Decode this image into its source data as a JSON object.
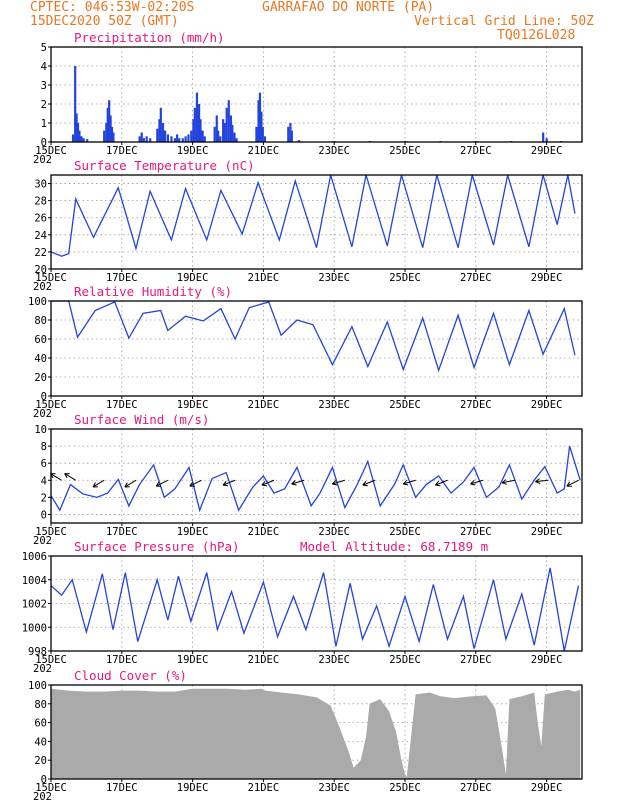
{
  "header": {
    "line1_left": "CPTEC:  046:53W-02:20S",
    "line1_right": "GARRAFAO DO NORTE (PA)",
    "line2_left": "15DEC2020 50Z (GMT)",
    "line2_right": "Vertical Grid Line: 50Z",
    "line3_right": "TQ0126L028"
  },
  "colors": {
    "header": "#e87722",
    "panel_title": "#e8177d",
    "series": "#2244dd",
    "cloud": "#aaaaaa"
  },
  "x_axis": {
    "tick_labels": [
      "15DEC",
      "17DEC",
      "19DEC",
      "21DEC",
      "23DEC",
      "25DEC",
      "27DEC",
      "29DEC"
    ],
    "year_fragment": "202"
  },
  "chart_data": [
    {
      "type": "bar",
      "title": "Precipitation (mm/h)",
      "ylim": [
        0,
        5
      ],
      "yticks": [
        0,
        1,
        2,
        3,
        4,
        5
      ],
      "x_unit": "days since 15DEC",
      "points": [
        [
          0.62,
          0.4
        ],
        [
          0.68,
          4.0
        ],
        [
          0.72,
          1.5
        ],
        [
          0.76,
          1.0
        ],
        [
          0.8,
          0.6
        ],
        [
          0.86,
          0.3
        ],
        [
          0.92,
          0.2
        ],
        [
          1.02,
          0.15
        ],
        [
          1.5,
          0.6
        ],
        [
          1.56,
          1.0
        ],
        [
          1.6,
          1.8
        ],
        [
          1.64,
          2.2
        ],
        [
          1.68,
          1.4
        ],
        [
          1.72,
          0.8
        ],
        [
          1.76,
          0.5
        ],
        [
          2.5,
          0.3
        ],
        [
          2.56,
          0.5
        ],
        [
          2.62,
          0.2
        ],
        [
          2.7,
          0.3
        ],
        [
          2.8,
          0.2
        ],
        [
          3.0,
          0.7
        ],
        [
          3.06,
          1.2
        ],
        [
          3.1,
          1.8
        ],
        [
          3.16,
          1.0
        ],
        [
          3.22,
          0.6
        ],
        [
          3.3,
          0.4
        ],
        [
          3.4,
          0.3
        ],
        [
          3.5,
          0.2
        ],
        [
          3.56,
          0.4
        ],
        [
          3.62,
          0.2
        ],
        [
          3.72,
          0.2
        ],
        [
          3.8,
          0.3
        ],
        [
          3.88,
          0.4
        ],
        [
          3.96,
          0.6
        ],
        [
          4.02,
          1.2
        ],
        [
          4.06,
          1.8
        ],
        [
          4.12,
          2.6
        ],
        [
          4.18,
          2.0
        ],
        [
          4.22,
          1.2
        ],
        [
          4.28,
          0.6
        ],
        [
          4.34,
          0.3
        ],
        [
          4.62,
          0.8
        ],
        [
          4.68,
          1.4
        ],
        [
          4.72,
          0.6
        ],
        [
          4.78,
          0.3
        ],
        [
          4.86,
          1.2
        ],
        [
          4.9,
          1.0
        ],
        [
          4.96,
          1.8
        ],
        [
          5.02,
          2.2
        ],
        [
          5.08,
          1.4
        ],
        [
          5.12,
          0.9
        ],
        [
          5.18,
          0.5
        ],
        [
          5.24,
          0.2
        ],
        [
          5.8,
          0.8
        ],
        [
          5.86,
          2.2
        ],
        [
          5.9,
          2.6
        ],
        [
          5.94,
          1.6
        ],
        [
          5.98,
          0.8
        ],
        [
          6.04,
          0.3
        ],
        [
          6.7,
          0.8
        ],
        [
          6.76,
          1.0
        ],
        [
          6.8,
          0.6
        ],
        [
          7.0,
          0.1
        ],
        [
          8.0,
          0.05
        ],
        [
          9.0,
          0.05
        ],
        [
          10.0,
          0.05
        ],
        [
          11.0,
          0.05
        ],
        [
          12.0,
          0.05
        ],
        [
          13.0,
          0.05
        ],
        [
          13.9,
          0.5
        ],
        [
          14.0,
          0.2
        ],
        [
          14.4,
          0.05
        ]
      ]
    },
    {
      "type": "line",
      "title": "Surface Temperature (nC)",
      "ylim": [
        20,
        31
      ],
      "yticks": [
        20,
        22,
        24,
        26,
        28,
        30
      ],
      "x_unit": "days since 15DEC",
      "points": [
        [
          0,
          22.0
        ],
        [
          0.3,
          21.5
        ],
        [
          0.5,
          21.8
        ],
        [
          0.7,
          28.2
        ],
        [
          1.2,
          23.7
        ],
        [
          1.9,
          29.5
        ],
        [
          2.4,
          22.4
        ],
        [
          2.8,
          29.1
        ],
        [
          3.4,
          23.4
        ],
        [
          3.8,
          29.4
        ],
        [
          4.4,
          23.4
        ],
        [
          4.8,
          29.2
        ],
        [
          5.4,
          24.1
        ],
        [
          5.85,
          30.1
        ],
        [
          6.45,
          23.4
        ],
        [
          6.9,
          30.3
        ],
        [
          7.5,
          22.5
        ],
        [
          7.9,
          31.2
        ],
        [
          8.5,
          22.6
        ],
        [
          8.9,
          31.2
        ],
        [
          9.5,
          22.7
        ],
        [
          9.9,
          31.2
        ],
        [
          10.5,
          22.5
        ],
        [
          10.9,
          31.2
        ],
        [
          11.5,
          22.5
        ],
        [
          11.9,
          31.0
        ],
        [
          12.5,
          22.8
        ],
        [
          12.9,
          31.0
        ],
        [
          13.5,
          22.6
        ],
        [
          13.9,
          31.2
        ],
        [
          14.3,
          25.2
        ],
        [
          14.6,
          31.0
        ],
        [
          14.8,
          26.5
        ]
      ]
    },
    {
      "type": "line",
      "title": "Relative Humidity (%)",
      "ylim": [
        0,
        100
      ],
      "yticks": [
        0,
        20,
        40,
        60,
        80,
        100
      ],
      "x_unit": "days since 15DEC",
      "points": [
        [
          0,
          100
        ],
        [
          0.5,
          100
        ],
        [
          0.75,
          62
        ],
        [
          1.25,
          90
        ],
        [
          1.8,
          99
        ],
        [
          2.2,
          61
        ],
        [
          2.6,
          87
        ],
        [
          3.1,
          90
        ],
        [
          3.3,
          69
        ],
        [
          3.8,
          84
        ],
        [
          4.3,
          79
        ],
        [
          4.8,
          92
        ],
        [
          5.2,
          60
        ],
        [
          5.6,
          93
        ],
        [
          6.15,
          99
        ],
        [
          6.5,
          64
        ],
        [
          6.95,
          80
        ],
        [
          7.4,
          75
        ],
        [
          7.95,
          33
        ],
        [
          8.5,
          73
        ],
        [
          8.95,
          31
        ],
        [
          9.5,
          78
        ],
        [
          9.95,
          28
        ],
        [
          10.5,
          82
        ],
        [
          10.95,
          27
        ],
        [
          11.5,
          85
        ],
        [
          11.95,
          30
        ],
        [
          12.5,
          87
        ],
        [
          12.95,
          33
        ],
        [
          13.5,
          90
        ],
        [
          13.9,
          44
        ],
        [
          14.5,
          92
        ],
        [
          14.8,
          43
        ]
      ]
    },
    {
      "type": "line",
      "title": "Surface Wind (m/s)",
      "ylim": [
        -1,
        10
      ],
      "yticks": [
        0,
        2,
        4,
        6,
        8,
        10
      ],
      "x_unit": "days since 15DEC",
      "points": [
        [
          0,
          2.2
        ],
        [
          0.25,
          0.5
        ],
        [
          0.55,
          3.5
        ],
        [
          0.9,
          2.4
        ],
        [
          1.3,
          2.0
        ],
        [
          1.6,
          2.5
        ],
        [
          1.9,
          4.1
        ],
        [
          2.2,
          1.0
        ],
        [
          2.5,
          3.5
        ],
        [
          2.9,
          5.8
        ],
        [
          3.2,
          2.0
        ],
        [
          3.5,
          3.0
        ],
        [
          3.9,
          5.5
        ],
        [
          4.2,
          0.5
        ],
        [
          4.55,
          4.2
        ],
        [
          4.95,
          4.9
        ],
        [
          5.3,
          0.5
        ],
        [
          5.7,
          3.2
        ],
        [
          6.0,
          4.5
        ],
        [
          6.3,
          2.5
        ],
        [
          6.6,
          3.0
        ],
        [
          6.95,
          5.5
        ],
        [
          7.35,
          1.0
        ],
        [
          7.6,
          2.5
        ],
        [
          7.95,
          5.5
        ],
        [
          8.3,
          0.8
        ],
        [
          8.65,
          3.5
        ],
        [
          8.95,
          6.2
        ],
        [
          9.3,
          1.0
        ],
        [
          9.7,
          3.5
        ],
        [
          9.95,
          5.8
        ],
        [
          10.3,
          2.0
        ],
        [
          10.6,
          3.5
        ],
        [
          10.95,
          4.5
        ],
        [
          11.3,
          2.5
        ],
        [
          11.65,
          3.8
        ],
        [
          11.95,
          5.5
        ],
        [
          12.3,
          2.0
        ],
        [
          12.65,
          3.2
        ],
        [
          12.95,
          5.8
        ],
        [
          13.3,
          1.8
        ],
        [
          13.65,
          4.0
        ],
        [
          13.95,
          5.6
        ],
        [
          14.3,
          2.5
        ],
        [
          14.5,
          3.0
        ],
        [
          14.65,
          8.0
        ],
        [
          14.95,
          4.0
        ]
      ]
    },
    {
      "type": "line",
      "title": "Surface Pressure (hPa)",
      "annotation": "Model Altitude: 68.7189 m",
      "ylim": [
        998,
        1006
      ],
      "yticks": [
        998,
        1000,
        1002,
        1004,
        1006
      ],
      "x_unit": "days since 15DEC",
      "points": [
        [
          0,
          1003.5
        ],
        [
          0.3,
          1002.7
        ],
        [
          0.6,
          1004.0
        ],
        [
          1.0,
          999.6
        ],
        [
          1.45,
          1004.5
        ],
        [
          1.75,
          999.8
        ],
        [
          2.1,
          1004.6
        ],
        [
          2.45,
          998.8
        ],
        [
          3.0,
          1004.0
        ],
        [
          3.3,
          1000.6
        ],
        [
          3.6,
          1004.3
        ],
        [
          3.95,
          1000.5
        ],
        [
          4.4,
          1004.6
        ],
        [
          4.7,
          999.8
        ],
        [
          5.1,
          1003.0
        ],
        [
          5.45,
          999.5
        ],
        [
          6.0,
          1003.8
        ],
        [
          6.4,
          999.2
        ],
        [
          6.85,
          1002.6
        ],
        [
          7.2,
          999.8
        ],
        [
          7.7,
          1004.6
        ],
        [
          8.05,
          998.4
        ],
        [
          8.45,
          1003.7
        ],
        [
          8.8,
          999.0
        ],
        [
          9.2,
          1001.8
        ],
        [
          9.55,
          998.4
        ],
        [
          10.0,
          1002.6
        ],
        [
          10.4,
          998.8
        ],
        [
          10.8,
          1003.6
        ],
        [
          11.2,
          999.0
        ],
        [
          11.65,
          1002.6
        ],
        [
          11.95,
          998.2
        ],
        [
          12.5,
          1004.0
        ],
        [
          12.85,
          999.0
        ],
        [
          13.3,
          1002.8
        ],
        [
          13.65,
          998.5
        ],
        [
          14.1,
          1005.0
        ],
        [
          14.5,
          998.0
        ],
        [
          14.9,
          1003.5
        ]
      ]
    },
    {
      "type": "area",
      "title": "Cloud Cover (%)",
      "ylim": [
        0,
        100
      ],
      "yticks": [
        0,
        20,
        40,
        60,
        80,
        100
      ],
      "x_unit": "days since 15DEC",
      "points": [
        [
          0,
          96
        ],
        [
          0.5,
          94
        ],
        [
          1.0,
          93
        ],
        [
          1.5,
          93
        ],
        [
          2.0,
          94
        ],
        [
          2.5,
          94
        ],
        [
          3.0,
          93
        ],
        [
          3.5,
          93
        ],
        [
          4.0,
          96
        ],
        [
          4.5,
          96
        ],
        [
          5.0,
          96
        ],
        [
          5.5,
          95
        ],
        [
          5.95,
          96
        ],
        [
          6.05,
          94
        ],
        [
          6.5,
          92
        ],
        [
          7.0,
          90
        ],
        [
          7.5,
          87
        ],
        [
          7.9,
          78
        ],
        [
          8.15,
          55
        ],
        [
          8.4,
          30
        ],
        [
          8.55,
          12
        ],
        [
          8.75,
          20
        ],
        [
          8.9,
          45
        ],
        [
          9.0,
          80
        ],
        [
          9.3,
          85
        ],
        [
          9.55,
          72
        ],
        [
          9.75,
          50
        ],
        [
          9.9,
          20
        ],
        [
          10.0,
          5
        ],
        [
          10.05,
          2
        ],
        [
          10.3,
          90
        ],
        [
          10.7,
          92
        ],
        [
          11.0,
          88
        ],
        [
          11.4,
          86
        ],
        [
          11.9,
          88
        ],
        [
          12.3,
          89
        ],
        [
          12.55,
          75
        ],
        [
          12.75,
          30
        ],
        [
          12.85,
          5
        ],
        [
          12.95,
          85
        ],
        [
          13.3,
          88
        ],
        [
          13.65,
          92
        ],
        [
          13.75,
          60
        ],
        [
          13.85,
          35
        ],
        [
          13.95,
          90
        ],
        [
          14.3,
          93
        ],
        [
          14.6,
          95
        ],
        [
          14.8,
          93
        ],
        [
          14.95,
          95
        ]
      ]
    }
  ],
  "wind_arrows": [
    {
      "x": 0.3,
      "u": -1,
      "v": 0.6
    },
    {
      "x": 0.7,
      "u": -1,
      "v": 0.6
    },
    {
      "x": 1.5,
      "u": -1,
      "v": -0.6
    },
    {
      "x": 2.4,
      "u": -1,
      "v": -0.6
    },
    {
      "x": 3.3,
      "u": -1,
      "v": -0.5
    },
    {
      "x": 4.25,
      "u": -1,
      "v": -0.5
    },
    {
      "x": 5.2,
      "u": -1,
      "v": -0.4
    },
    {
      "x": 6.3,
      "u": -1,
      "v": -0.4
    },
    {
      "x": 7.15,
      "u": -1,
      "v": -0.3
    },
    {
      "x": 8.3,
      "u": -1,
      "v": -0.3
    },
    {
      "x": 9.15,
      "u": -1,
      "v": -0.4
    },
    {
      "x": 10.3,
      "u": -1,
      "v": -0.3
    },
    {
      "x": 11.2,
      "u": -1,
      "v": -0.4
    },
    {
      "x": 12.2,
      "u": -1,
      "v": -0.3
    },
    {
      "x": 13.1,
      "u": -1,
      "v": -0.2
    },
    {
      "x": 14.05,
      "u": -1,
      "v": -0.1
    },
    {
      "x": 14.9,
      "u": -1,
      "v": -0.5
    }
  ]
}
